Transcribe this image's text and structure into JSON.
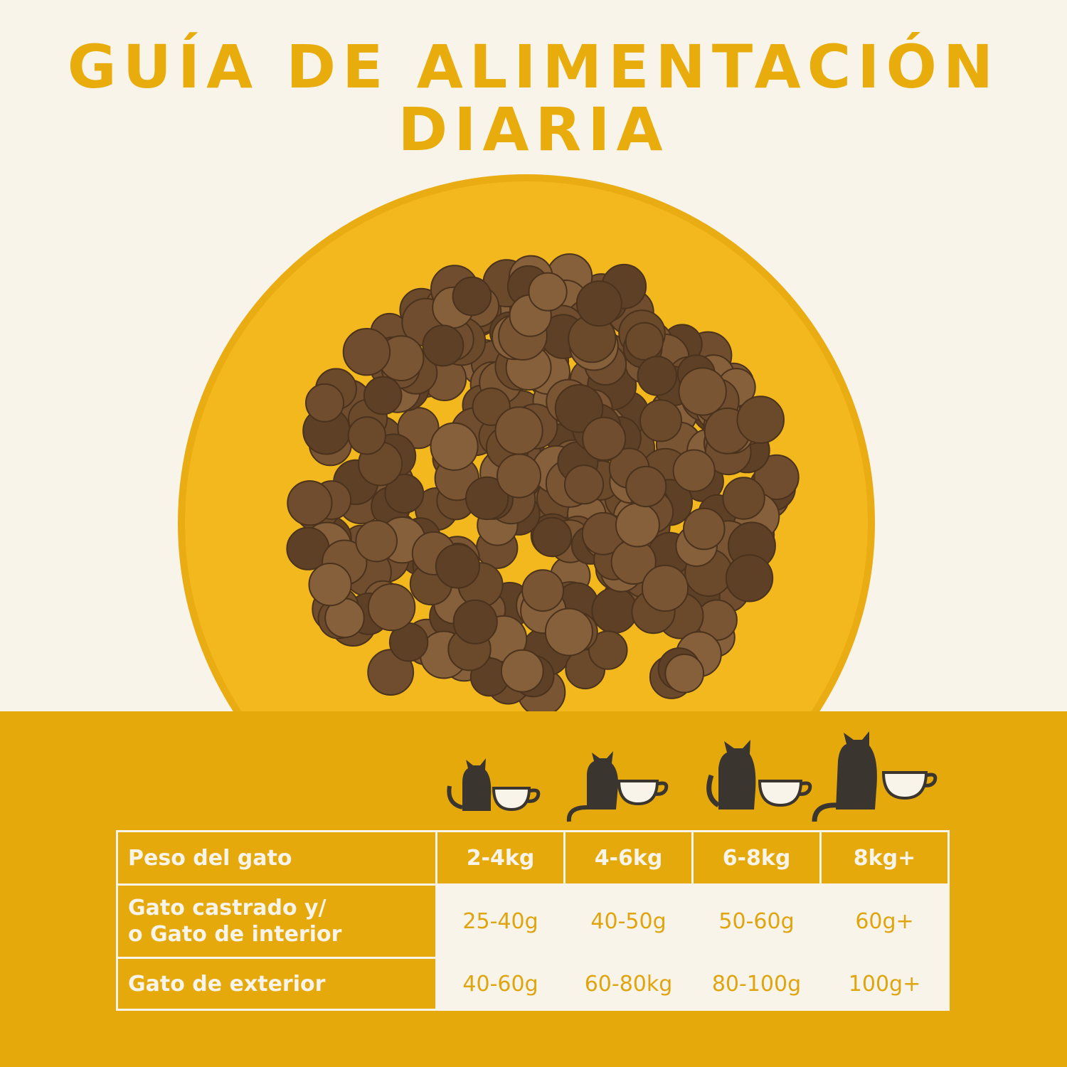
{
  "header": {
    "title": [
      "GUÍA DE ALIMENTACIÓN",
      "DIARIA"
    ]
  },
  "table": {
    "head": {
      "label": "Peso del gato",
      "values": [
        "2-4kg",
        "4-6kg",
        "6-8kg",
        "8kg+"
      ]
    },
    "rows": [
      {
        "label": [
          "Gato castrado y/",
          "o Gato de interior"
        ],
        "values": [
          "25-40g",
          "40-50g",
          "50-60g",
          "60g+"
        ]
      },
      {
        "label": [
          "Gato de exterior"
        ],
        "values": [
          "40-60g",
          "60-80kg",
          "80-100g",
          "100g+"
        ]
      }
    ]
  }
}
